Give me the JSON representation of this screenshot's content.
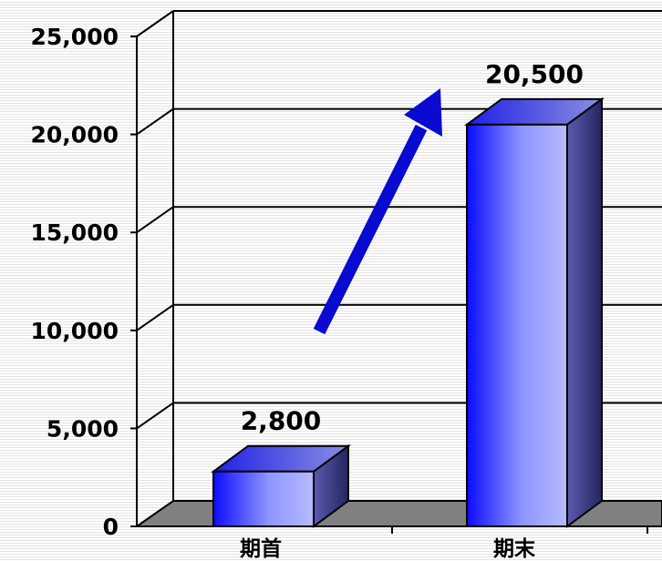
{
  "chart_data": {
    "type": "bar",
    "style": "3d-column",
    "categories": [
      "期首",
      "期末"
    ],
    "values": [
      2800,
      20500
    ],
    "data_labels": [
      "2,800",
      "20,500"
    ],
    "ylim": [
      0,
      25000
    ],
    "yticks": [
      0,
      5000,
      10000,
      15000,
      20000,
      25000
    ],
    "ytick_labels": [
      "0",
      "5,000",
      "10,000",
      "15,000",
      "20,000",
      "25,000"
    ],
    "grid": true,
    "legend": "none",
    "annotation": "upward-arrow",
    "colors": {
      "bar_front_dark": "#1010ff",
      "bar_front_light": "#aab0ff",
      "bar_top": "#4a4ae0",
      "bar_side": "#3a3a90",
      "floor": "#808080",
      "arrow": "#0a0ad0"
    }
  }
}
